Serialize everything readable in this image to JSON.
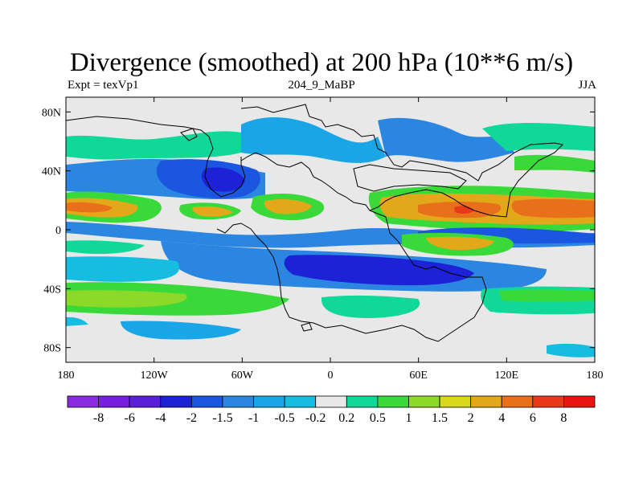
{
  "title": "Divergence (smoothed) at 200 hPa (10**6 m/s)",
  "left_label": "Expt = texVp1",
  "center_label": "204_9_MaBP",
  "right_label": "JJA",
  "lat_ticks": [
    {
      "lat": 80,
      "label": "80N"
    },
    {
      "lat": 40,
      "label": "40N"
    },
    {
      "lat": 0,
      "label": "0"
    },
    {
      "lat": -40,
      "label": "40S"
    },
    {
      "lat": -80,
      "label": "80S"
    }
  ],
  "lon_ticks": [
    {
      "lon": -180,
      "label": "180"
    },
    {
      "lon": -120,
      "label": "120W"
    },
    {
      "lon": -60,
      "label": "60W"
    },
    {
      "lon": 0,
      "label": "0"
    },
    {
      "lon": 60,
      "label": "60E"
    },
    {
      "lon": 120,
      "label": "120E"
    },
    {
      "lon": 180,
      "label": "180"
    }
  ],
  "colorbar": {
    "labels": [
      "-8",
      "-6",
      "-4",
      "-2",
      "-1.5",
      "-1",
      "-0.5",
      "-0.2",
      "0.2",
      "0.5",
      "1",
      "1.5",
      "2",
      "4",
      "6",
      "8"
    ],
    "colors": [
      "#8a2be2",
      "#7820e0",
      "#5a1fd8",
      "#1e22d6",
      "#1a56e0",
      "#2a86e0",
      "#1aa6e6",
      "#16bde0",
      "#e8e8e8",
      "#10d898",
      "#3ad93a",
      "#8cd92a",
      "#d8d81a",
      "#e2a81a",
      "#e8701a",
      "#e83a1a",
      "#e81414"
    ]
  },
  "colors": {
    "background": "#e8e8e8",
    "strong_negative": "#1e22d6",
    "negative": "#2a86e0",
    "weak_negative": "#16bde0",
    "weak_positive": "#10d898",
    "positive": "#3ad93a",
    "strong_positive": "#e2a81a",
    "max_positive": "#e83a1a"
  }
}
